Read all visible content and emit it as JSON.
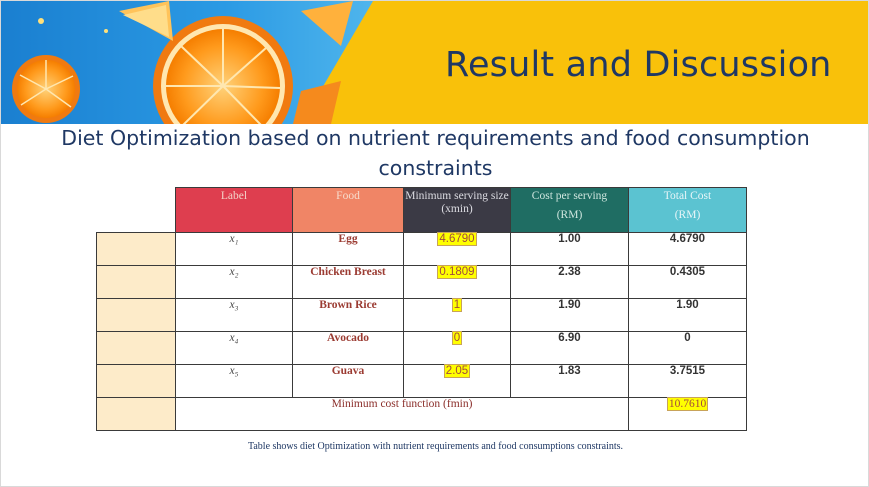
{
  "slide": {
    "title": "Result and Discussion",
    "subtitle": "Diet Optimization based on nutrient requirements and food consumption constraints"
  },
  "table": {
    "headers": {
      "label": "Label",
      "food": "Food",
      "minimum": "Minimum serving size (xmin)",
      "cost_line1": "Cost per serving",
      "cost_line2": "(RM)",
      "total_line1": "Total Cost",
      "total_line2": "(RM)"
    },
    "rows": [
      {
        "var": "x₁",
        "food": "Egg",
        "min": "4.6790",
        "cost": "1.00",
        "total": "4.6790"
      },
      {
        "var": "x₂",
        "food": "Chicken Breast",
        "min": "0.1809",
        "cost": "2.38",
        "total": "0.4305"
      },
      {
        "var": "x₃",
        "food": "Brown Rice",
        "min": "1",
        "cost": "1.90",
        "total": "1.90"
      },
      {
        "var": "x₄",
        "food": "Avocado",
        "min": "0",
        "cost": "6.90",
        "total": "0"
      },
      {
        "var": "x₅",
        "food": "Guava",
        "min": "2.05",
        "cost": "1.83",
        "total": "3.7515"
      }
    ],
    "min_cost_label": "Minimum cost function (fmin)",
    "min_cost_value": "10.7610"
  },
  "caption": "Table shows diet Optimization with nutrient requirements and food consumptions constraints.",
  "colors": {
    "banner": "#f9c10a",
    "title": "#1f3864",
    "header_label": "#de3e4f",
    "header_food": "#f08566",
    "header_min": "#3b3a45",
    "header_cost": "#1f6d63",
    "header_total": "#5bc3d1",
    "side_column": "#fdebc9",
    "highlight": "#ffff00"
  }
}
